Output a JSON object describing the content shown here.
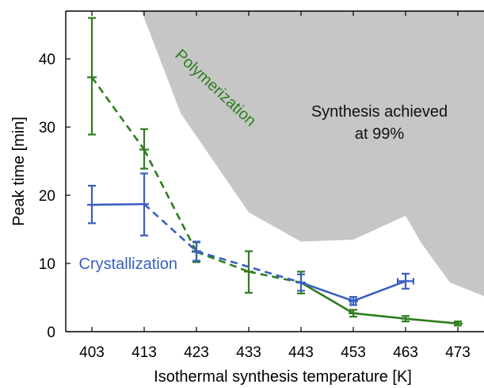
{
  "chart_data": {
    "type": "line",
    "xlabel": "Isothermal synthesis temperature [K]",
    "ylabel": "Peak time [min]",
    "xlim": [
      398,
      478
    ],
    "ylim": [
      0,
      47
    ],
    "xticks": [
      403,
      413,
      423,
      433,
      443,
      453,
      463,
      473
    ],
    "yticks": [
      0,
      10,
      20,
      30,
      40
    ],
    "grid": false,
    "shaded_region": {
      "label_lines": [
        "Synthesis achieved",
        "at 99%"
      ],
      "color": "#c6c6c6",
      "boundary": [
        [
          412.5,
          47
        ],
        [
          420,
          32
        ],
        [
          433,
          17.5
        ],
        [
          443,
          13.2
        ],
        [
          453,
          13.5
        ],
        [
          463,
          17
        ],
        [
          466,
          13
        ],
        [
          471.5,
          7.2
        ],
        [
          478,
          5.2
        ]
      ]
    },
    "series": [
      {
        "name": "Polymerization",
        "color": "#2e7d1e",
        "x": [
          403,
          413,
          423,
          433,
          443,
          453,
          463,
          473
        ],
        "y": [
          37.3,
          26.7,
          11.7,
          8.8,
          7.2,
          2.7,
          1.9,
          1.2
        ],
        "yerr_low": [
          28.9,
          23.9,
          10.2,
          5.7,
          5.6,
          2.2,
          1.5,
          0.9
        ],
        "yerr_high": [
          46.0,
          29.7,
          13.1,
          11.8,
          8.8,
          3.2,
          2.3,
          1.5
        ],
        "segments": [
          "dashed",
          "dashed",
          "dashed",
          "dashed",
          "solid",
          "solid",
          "solid"
        ]
      },
      {
        "name": "Crystallization",
        "color": "#3a5fc2",
        "x": [
          403,
          413,
          423,
          443,
          453,
          463
        ],
        "y": [
          18.6,
          18.7,
          11.8,
          7.2,
          4.5,
          7.4
        ],
        "yerr_low": [
          15.9,
          14.1,
          10.4,
          6.0,
          3.9,
          6.3
        ],
        "yerr_high": [
          21.4,
          23.2,
          13.2,
          8.4,
          5.1,
          8.5
        ],
        "xerr_low": [
          null,
          null,
          null,
          null,
          452.5,
          461.5
        ],
        "xerr_high": [
          null,
          null,
          null,
          null,
          453.5,
          464.5
        ],
        "segments": [
          "solid",
          "dashed",
          "dashed",
          "solid",
          "solid"
        ]
      }
    ],
    "annotations": [
      {
        "text": "Polymerization",
        "x": 426,
        "y": 35.2,
        "angle": 43,
        "color": "#2e7d1e"
      },
      {
        "text": "Crystallization",
        "x": 400.5,
        "y": 9.2,
        "angle": 0,
        "color": "#3a5fc2"
      }
    ]
  }
}
